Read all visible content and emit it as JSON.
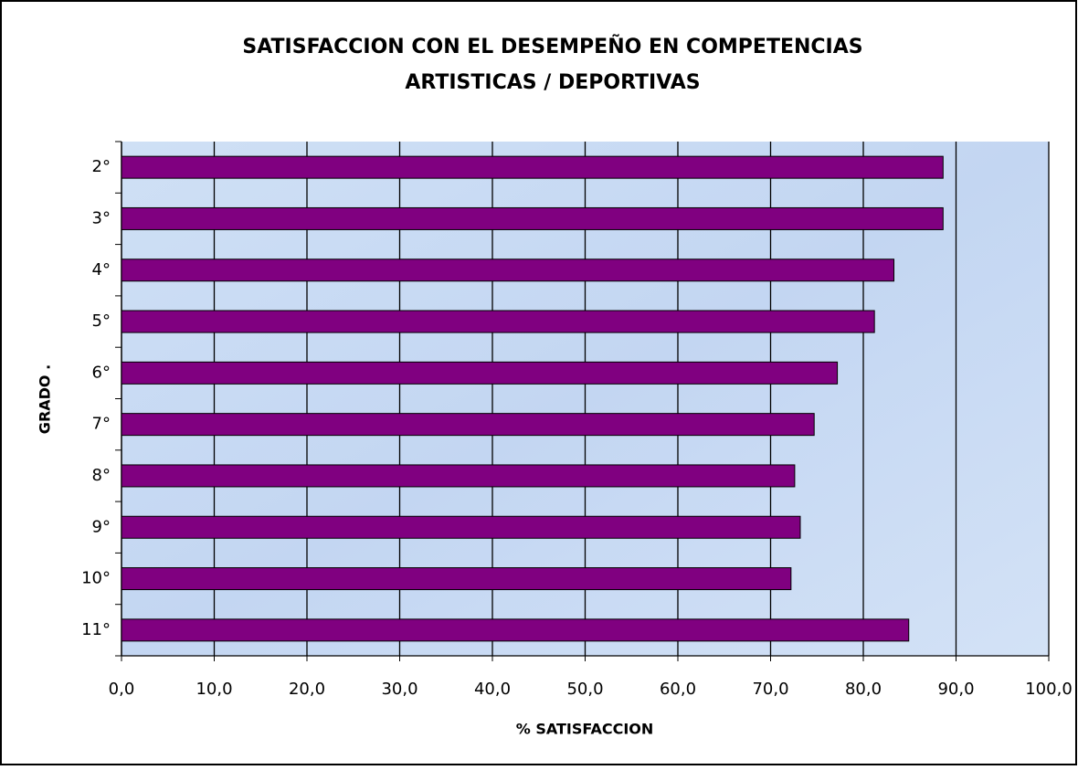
{
  "chart_data": {
    "type": "barh",
    "title": [
      "SATISFACCION CON EL DESEMPEÑO EN COMPETENCIAS",
      "ARTISTICAS / DEPORTIVAS"
    ],
    "x_label": "% SATISFACCION",
    "y_label": "GRADO .",
    "categories": [
      "2°",
      "3°",
      "4°",
      "5°",
      "6°",
      "7°",
      "8°",
      "9°",
      "10°",
      "11°"
    ],
    "values": [
      88.6,
      88.6,
      83.3,
      81.2,
      77.2,
      74.7,
      72.6,
      73.2,
      72.2,
      84.9
    ],
    "color": "#800080",
    "xlim": [
      0,
      100
    ],
    "xticks": [
      {
        "value": 0,
        "label": "0,0"
      },
      {
        "value": 10,
        "label": "10,0"
      },
      {
        "value": 20,
        "label": "20,0"
      },
      {
        "value": 30,
        "label": "30,0"
      },
      {
        "value": 40,
        "label": "40,0"
      },
      {
        "value": 50,
        "label": "50,0"
      },
      {
        "value": 60,
        "label": "60,0"
      },
      {
        "value": 70,
        "label": "70,0"
      },
      {
        "value": 80,
        "label": "80,0"
      },
      {
        "value": 90,
        "label": "90,0"
      },
      {
        "value": 100,
        "label": "100,0"
      }
    ],
    "grid": true
  }
}
